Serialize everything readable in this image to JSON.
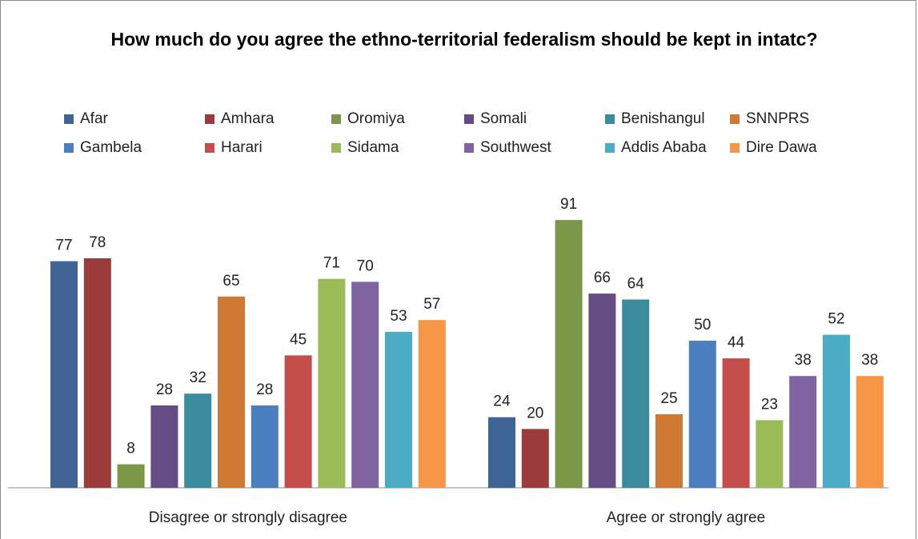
{
  "chart_data": {
    "type": "bar",
    "title": "How much do you agree the ethno-territorial federalism should be kept in intatc?",
    "categories": [
      "Disagree or strongly disagree",
      "Agree or strongly agree"
    ],
    "series": [
      {
        "name": "Afar",
        "color": "#3F6495",
        "values": [
          77,
          24
        ]
      },
      {
        "name": "Amhara",
        "color": "#9B3C3A",
        "values": [
          78,
          20
        ]
      },
      {
        "name": "Oromiya",
        "color": "#7B9848",
        "values": [
          8,
          91
        ]
      },
      {
        "name": "Somali",
        "color": "#654C86",
        "values": [
          28,
          66
        ]
      },
      {
        "name": "Benishangul",
        "color": "#3A8C9D",
        "values": [
          32,
          64
        ]
      },
      {
        "name": "SNNPRS",
        "color": "#CF7A34",
        "values": [
          65,
          25
        ]
      },
      {
        "name": "Gambela",
        "color": "#4C7FC0",
        "values": [
          28,
          50
        ]
      },
      {
        "name": "Harari",
        "color": "#C44E4C",
        "values": [
          45,
          44
        ]
      },
      {
        "name": "Sidama",
        "color": "#9BBB59",
        "values": [
          71,
          23
        ]
      },
      {
        "name": "Southwest",
        "color": "#8064A2",
        "values": [
          70,
          38
        ]
      },
      {
        "name": "Addis Ababa",
        "color": "#4BACC6",
        "values": [
          53,
          52
        ]
      },
      {
        "name": "Dire Dawa",
        "color": "#F79646",
        "values": [
          57,
          38
        ]
      }
    ],
    "ylim": [
      0,
      100
    ],
    "grid": false,
    "legend": "top",
    "data_labels": true
  }
}
